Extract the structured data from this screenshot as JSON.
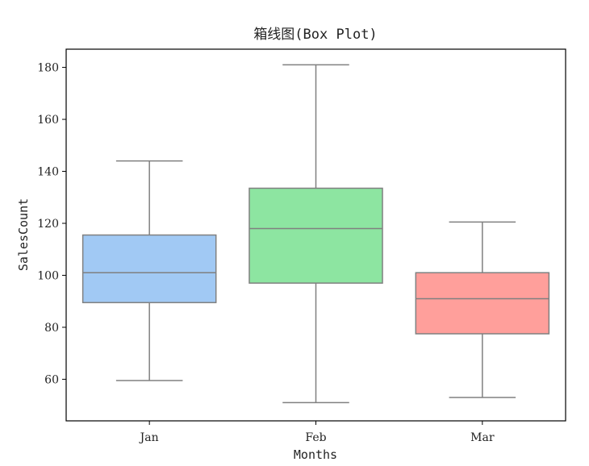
{
  "chart_data": {
    "type": "box",
    "title": "箱线图(Box Plot)",
    "xlabel": "Months",
    "ylabel": "SalesCount",
    "ylim": [
      44,
      187
    ],
    "yticks": [
      60,
      80,
      100,
      120,
      140,
      160,
      180
    ],
    "grid": false,
    "categories": [
      "Jan",
      "Feb",
      "Mar"
    ],
    "boxes": [
      {
        "category": "Jan",
        "whisker_low": 59.5,
        "q1": 89.5,
        "median": 101,
        "q3": 115.5,
        "whisker_high": 144,
        "color": "#a1c9f4"
      },
      {
        "category": "Feb",
        "whisker_low": 51,
        "q1": 97,
        "median": 118,
        "q3": 133.5,
        "whisker_high": 181,
        "color": "#8de5a1"
      },
      {
        "category": "Mar",
        "whisker_low": 53,
        "q1": 77.5,
        "median": 91,
        "q3": 101,
        "whisker_high": 120.5,
        "color": "#ff9f9b"
      }
    ],
    "line_color": "#808080"
  }
}
